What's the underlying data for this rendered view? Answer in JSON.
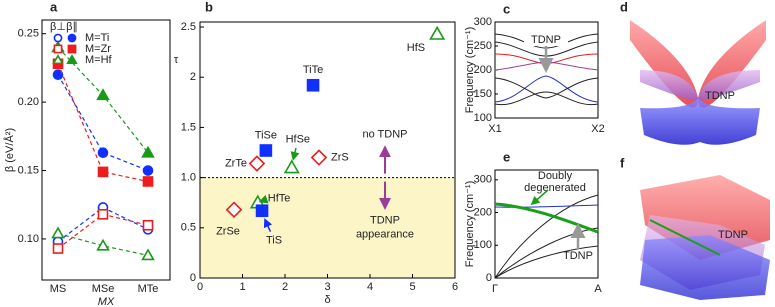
{
  "chart_data": [
    {
      "type": "line",
      "label": "a",
      "categories": [
        "MS",
        "MSe",
        "MTe"
      ],
      "xlabel": "MX",
      "ylabel": "β (eV/Å²)",
      "ylim": [
        0.07,
        0.26
      ],
      "yticks": [
        {
          "value": 0.1,
          "label": "0.10"
        },
        0.15,
        {
          "value": 0.2,
          "label": "0.20"
        },
        0.25
      ],
      "legend_columns": [
        "β⊥",
        "β∥"
      ],
      "series": [
        {
          "name": "M=Ti",
          "color": "#1030ff",
          "marker": "circle",
          "fill": "open",
          "values": [
            0.098,
            0.123,
            0.107
          ]
        },
        {
          "name": "M=Ti",
          "color": "#1030ff",
          "marker": "circle",
          "fill": "filled",
          "values": [
            0.22,
            0.163,
            0.15
          ]
        },
        {
          "name": "M=Zr",
          "color": "#ee1c1c",
          "marker": "square",
          "fill": "open",
          "values": [
            0.093,
            0.118,
            0.11
          ]
        },
        {
          "name": "M=Zr",
          "color": "#ee1c1c",
          "marker": "square",
          "fill": "filled",
          "values": [
            0.228,
            0.149,
            0.142
          ]
        },
        {
          "name": "M=Hf",
          "color": "#189a18",
          "marker": "triangle",
          "fill": "open",
          "values": [
            0.104,
            0.095,
            0.088
          ]
        },
        {
          "name": "M=Hf",
          "color": "#189a18",
          "marker": "triangle",
          "fill": "filled",
          "values": [
            0.24,
            0.205,
            0.163
          ]
        }
      ]
    },
    {
      "type": "scatter",
      "label": "b",
      "xlabel": "δ",
      "ylabel": "τ",
      "xlim": [
        0,
        6
      ],
      "ylim": [
        0,
        2.55
      ],
      "xticks": [
        0,
        1,
        2,
        3,
        4,
        5,
        6
      ],
      "yticks": [
        0,
        0.5,
        {
          "value": 1,
          "label": "1.0"
        },
        1.5,
        2,
        2.5
      ],
      "threshold": 1,
      "threshold_label": {
        "value": 1,
        "label": "1.0"
      },
      "points": [
        {
          "label": "TiTe",
          "x": 2.66,
          "y": 1.92,
          "color": "#1030ff",
          "marker": "square",
          "fill": "filled"
        },
        {
          "label": "TiSe",
          "x": 1.55,
          "y": 1.27,
          "color": "#1030ff",
          "marker": "square",
          "fill": "filled"
        },
        {
          "label": "HfSe",
          "x": 2.16,
          "y": 1.1,
          "color": "#189a18",
          "marker": "triangle",
          "fill": "open"
        },
        {
          "label": "ZrTe",
          "x": 1.34,
          "y": 1.14,
          "color": "#ee1c1c",
          "marker": "diamond",
          "fill": "open"
        },
        {
          "label": "ZrS",
          "x": 2.8,
          "y": 1.2,
          "color": "#ee1c1c",
          "marker": "diamond",
          "fill": "open"
        },
        {
          "label": "HfS",
          "x": 5.58,
          "y": 2.43,
          "color": "#189a18",
          "marker": "triangle",
          "fill": "open"
        },
        {
          "label": "HfTe",
          "x": 1.36,
          "y": 0.75,
          "color": "#189a18",
          "marker": "triangle",
          "fill": "open"
        },
        {
          "label": "TiS",
          "x": 1.46,
          "y": 0.67,
          "color": "#1030ff",
          "marker": "square",
          "fill": "filled"
        },
        {
          "label": "ZrSe",
          "x": 0.8,
          "y": 0.68,
          "color": "#ee1c1c",
          "marker": "diamond",
          "fill": "open"
        }
      ],
      "annotation_above": "no TDNP",
      "annotation_below": [
        "TDNP",
        "appearance"
      ]
    },
    {
      "type": "band",
      "label": "c",
      "xticklabels": [
        "X1",
        "X2"
      ],
      "ylabel": "Frequency (cm⁻¹)",
      "ylim": [
        100,
        300
      ],
      "yticks": [
        100,
        150,
        200,
        250,
        300
      ],
      "annotation": "TDNP"
    },
    {
      "type": "surface",
      "label": "d",
      "annotation": "TDNP"
    },
    {
      "type": "band",
      "label": "e",
      "xticklabels": [
        "Γ",
        "A"
      ],
      "ylabel": "Frequency (cm⁻¹)",
      "ylim": [
        0,
        330
      ],
      "yticks": [
        0,
        100,
        200,
        300
      ],
      "annotation": "TDNP",
      "annotation2": [
        "Doubly",
        "degenerated"
      ]
    },
    {
      "type": "surface",
      "label": "f",
      "annotation": "TDNP"
    }
  ]
}
